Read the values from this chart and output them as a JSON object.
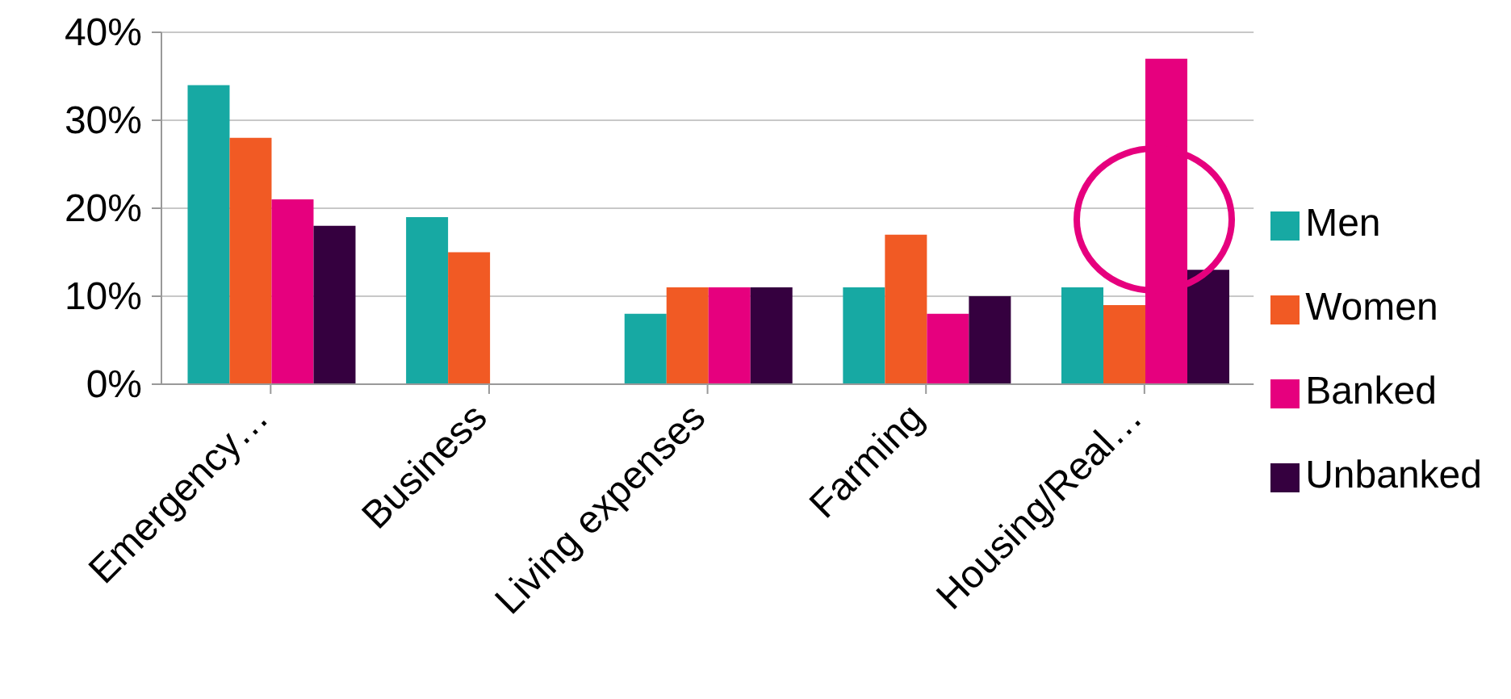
{
  "chart_data": {
    "type": "bar",
    "categories": [
      "Emergency…",
      "Business",
      "Living expenses",
      "Farming",
      "Housing/Real…"
    ],
    "series": [
      {
        "name": "Men",
        "color": "#17a9a3",
        "values": [
          34,
          19,
          8,
          11,
          11
        ]
      },
      {
        "name": "Women",
        "color": "#f15a24",
        "values": [
          28,
          15,
          11,
          17,
          9
        ]
      },
      {
        "name": "Banked",
        "color": "#e6007e",
        "values": [
          21,
          null,
          11,
          8,
          37
        ]
      },
      {
        "name": "Unbanked",
        "color": "#35003f",
        "values": [
          18,
          null,
          11,
          10,
          13
        ]
      }
    ],
    "ylim": [
      0,
      40
    ],
    "yticks": [
      {
        "value": 0,
        "label": "0%"
      },
      {
        "value": 10,
        "label": "10%"
      },
      {
        "value": 20,
        "label": "20%"
      },
      {
        "value": 30,
        "label": "30%"
      },
      {
        "value": 40,
        "label": "40%"
      }
    ],
    "grid": "y",
    "legend": "right"
  }
}
